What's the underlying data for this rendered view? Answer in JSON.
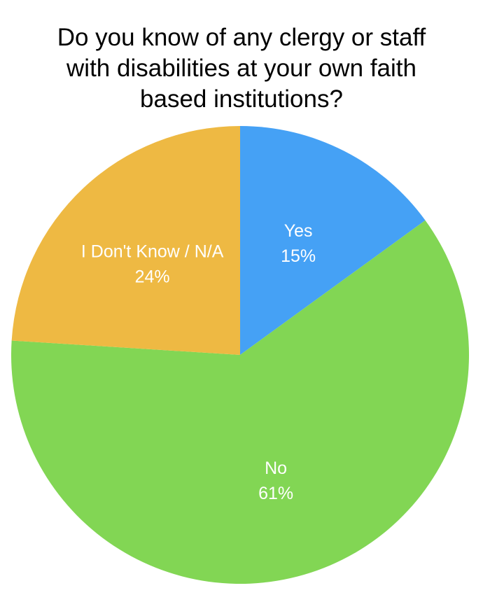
{
  "chart_data": {
    "type": "pie",
    "title_lines": [
      "Do you know of any clergy or staff",
      "with disabilities at your own faith",
      "based institutions?"
    ],
    "slices": [
      {
        "label": "Yes",
        "value": 15,
        "value_label": "15%",
        "color": "#45a1f5"
      },
      {
        "label": "No",
        "value": 61,
        "value_label": "61%",
        "color": "#82d654"
      },
      {
        "label": "I Don't Know / N/A",
        "value": 24,
        "value_label": "24%",
        "color": "#eeb943"
      }
    ],
    "start": "12 o'clock, clockwise"
  }
}
